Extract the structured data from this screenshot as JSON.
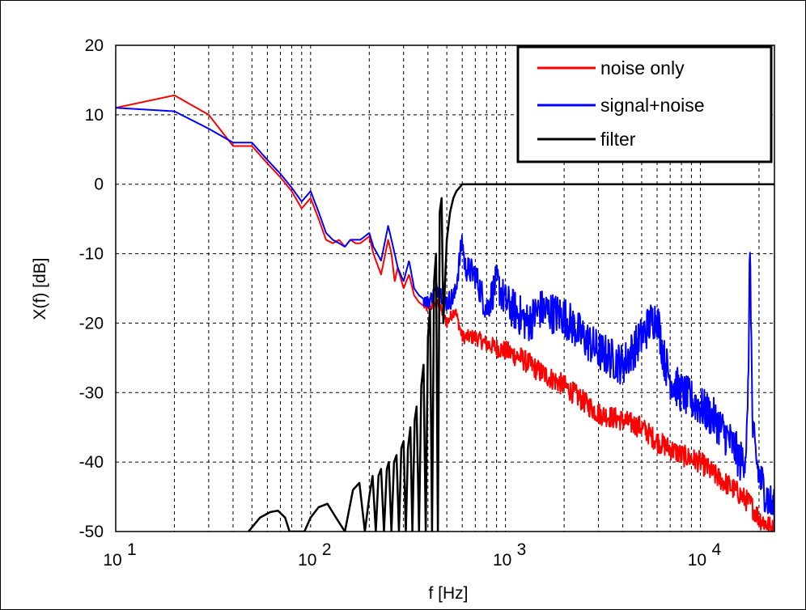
{
  "chart_data": {
    "type": "line",
    "title": "",
    "xlabel": "f [Hz]",
    "ylabel": "X(f) [dB]",
    "x_scale": "log",
    "xlim": [
      10,
      24000
    ],
    "ylim": [
      -50,
      20
    ],
    "grid": true,
    "grid_style": "dashed",
    "legend_position": "top-right",
    "y_ticks": [
      "20",
      "10",
      "0",
      "-10",
      "-20",
      "-30",
      "-40",
      "-50"
    ],
    "x_ticks": [
      {
        "base": "10",
        "exp": "1"
      },
      {
        "base": "10",
        "exp": "2"
      },
      {
        "base": "10",
        "exp": "3"
      },
      {
        "base": "10",
        "exp": "4"
      }
    ],
    "series": [
      {
        "name": "noise only",
        "color": "#ff0000",
        "x": [
          10,
          20,
          30,
          40,
          50,
          60,
          70,
          80,
          90,
          100,
          110,
          120,
          130,
          140,
          150,
          160,
          170,
          180,
          190,
          200,
          210,
          230,
          250,
          260,
          270,
          280,
          300,
          320,
          340,
          360,
          400,
          450,
          500,
          550,
          600,
          700,
          800,
          1000,
          1200,
          1500,
          2000,
          3000,
          4000,
          5000,
          6000,
          8000,
          10000,
          12000,
          15000,
          18000,
          20000,
          22000,
          24000
        ],
        "y": [
          11,
          12.8,
          10,
          5.5,
          5.5,
          3,
          1,
          -1,
          -3.5,
          -2,
          -5,
          -8,
          -8.5,
          -8,
          -9,
          -8,
          -8.5,
          -8.5,
          -8,
          -7.5,
          -10,
          -13,
          -8,
          -10,
          -14,
          -12,
          -15,
          -13,
          -16,
          -17,
          -18,
          -17,
          -20,
          -18,
          -22,
          -22,
          -23,
          -24,
          -25,
          -27,
          -29,
          -33,
          -34,
          -35,
          -37,
          -39,
          -40,
          -42,
          -44,
          -46,
          -48,
          -49,
          -50
        ],
        "noise_amplitude": 1.6
      },
      {
        "name": "signal+noise",
        "color": "#0000ff",
        "x": [
          10,
          20,
          30,
          40,
          50,
          60,
          70,
          80,
          90,
          100,
          110,
          120,
          130,
          140,
          150,
          160,
          170,
          180,
          190,
          200,
          210,
          230,
          250,
          260,
          270,
          280,
          300,
          320,
          340,
          360,
          400,
          450,
          500,
          550,
          600,
          620,
          700,
          800,
          900,
          1000,
          1100,
          1200,
          1300,
          1500,
          2000,
          2500,
          3000,
          4000,
          5000,
          5500,
          6000,
          6500,
          7000,
          8000,
          10000,
          12000,
          15000,
          16000,
          17000,
          17500,
          18000,
          18500,
          19000,
          19500,
          20000,
          22000,
          24000
        ],
        "y": [
          11,
          10.5,
          8,
          6,
          6,
          3.5,
          1.5,
          -0.5,
          -2.5,
          -1,
          -4,
          -7,
          -8,
          -8.5,
          -9,
          -8,
          -8,
          -8,
          -7.5,
          -7,
          -9,
          -11,
          -6,
          -8,
          -10,
          -12,
          -14,
          -11,
          -15,
          -16,
          -17,
          -15,
          -17,
          -16,
          -8,
          -12,
          -13,
          -18,
          -14,
          -17,
          -18,
          -19,
          -20,
          -18,
          -19,
          -22,
          -24,
          -26,
          -22,
          -20,
          -19,
          -25,
          -28,
          -30,
          -32,
          -34,
          -38,
          -40,
          -39,
          -34,
          -7.5,
          -35,
          -38,
          -40,
          -42,
          -45,
          -47
        ],
        "noise_amplitude": 3.0
      },
      {
        "name": "filter",
        "color": "#000000",
        "x": [
          48,
          55,
          62,
          68,
          74,
          78,
          85,
          93,
          100,
          110,
          122,
          135,
          150,
          165,
          178,
          190,
          200,
          208,
          216,
          223,
          230,
          238,
          246,
          252,
          260,
          268,
          276,
          284,
          292,
          300,
          308,
          316,
          325,
          333,
          342,
          350,
          360,
          370,
          380,
          390,
          400,
          410,
          420,
          430,
          440,
          450,
          460,
          470,
          480,
          490,
          500,
          520,
          540,
          560,
          580,
          600,
          620,
          700,
          1000,
          2000,
          5000,
          10000,
          20000,
          24000
        ],
        "y": [
          -50,
          -48,
          -47.2,
          -47,
          -48,
          -50,
          -50,
          -50,
          -48,
          -46.5,
          -46,
          -48,
          -50,
          -44,
          -43,
          -50,
          -45,
          -42,
          -50,
          -42,
          -41,
          -50,
          -41,
          -40,
          -50,
          -40,
          -39,
          -50,
          -38,
          -37,
          -50,
          -38,
          -35,
          -50,
          -34,
          -32,
          -50,
          -29,
          -26,
          -50,
          -22,
          -18,
          -50,
          -14,
          -10,
          -50,
          -4,
          -2,
          -20,
          -14,
          -8,
          -4,
          -2,
          -1,
          -0.5,
          0,
          0,
          0,
          0,
          0,
          0,
          0,
          0,
          0
        ]
      }
    ]
  }
}
